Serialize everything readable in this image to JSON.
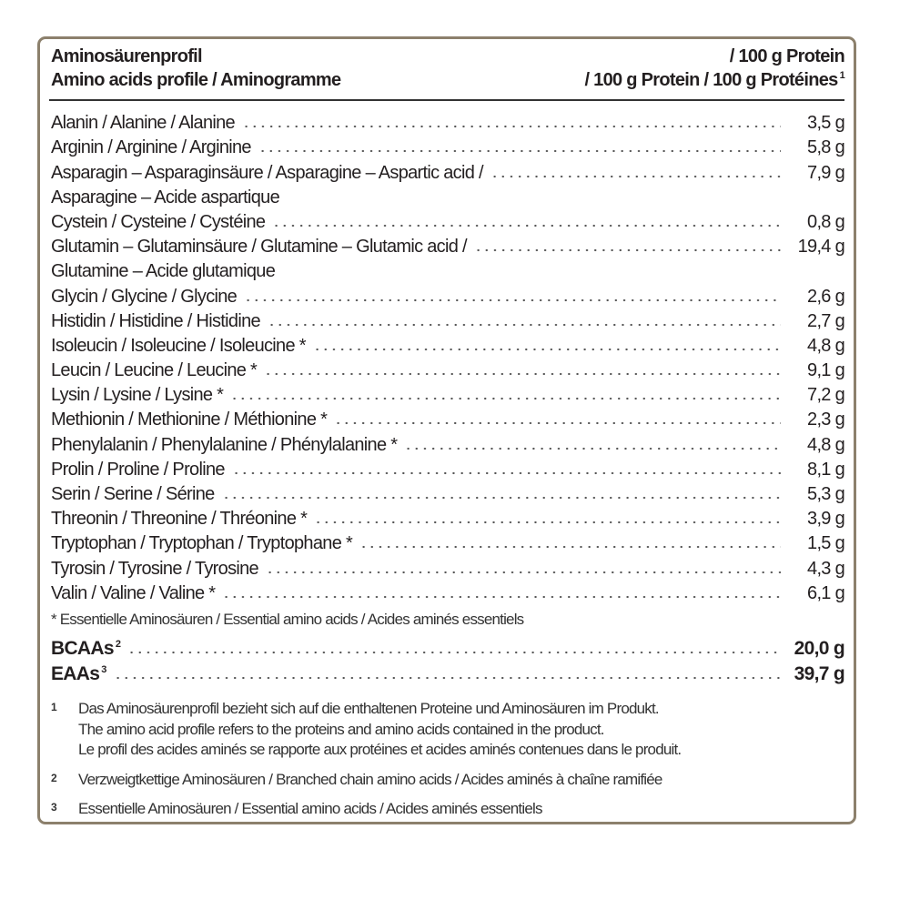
{
  "header": {
    "title_de": "Aminosäurenprofil",
    "title_en_fr": "Amino acids profile / Aminogramme",
    "unit_de": "/ 100 g Protein",
    "unit_en_fr": "/ 100 g Protein / 100 g Protéines",
    "unit_sup": "1"
  },
  "amino_acids": [
    {
      "name": "Alanin / Alanine / Alanine",
      "value": "3,5 g"
    },
    {
      "name": "Arginin / Arginine / Arginine",
      "value": "5,8 g"
    },
    {
      "name": "Asparagin – Asparaginsäure / Asparagine – Aspartic acid /",
      "name2": "Asparagine – Acide aspartique",
      "value": "7,9 g"
    },
    {
      "name": "Cystein / Cysteine / Cystéine",
      "value": "0,8 g"
    },
    {
      "name": "Glutamin – Glutaminsäure / Glutamine – Glutamic acid /",
      "name2": "Glutamine – Acide glutamique",
      "value": "19,4 g"
    },
    {
      "name": "Glycin / Glycine / Glycine",
      "value": "2,6 g"
    },
    {
      "name": "Histidin / Histidine / Histidine",
      "value": "2,7 g"
    },
    {
      "name": "Isoleucin / Isoleucine / Isoleucine *",
      "value": "4,8 g"
    },
    {
      "name": "Leucin / Leucine / Leucine *",
      "value": "9,1 g"
    },
    {
      "name": "Lysin / Lysine / Lysine *",
      "value": "7,2 g"
    },
    {
      "name": "Methionin / Methionine / Méthionine *",
      "value": "2,3 g"
    },
    {
      "name": "Phenylalanin / Phenylalanine / Phénylalanine *",
      "value": "4,8 g"
    },
    {
      "name": "Prolin / Proline / Proline",
      "value": "8,1 g"
    },
    {
      "name": "Serin / Serine / Sérine",
      "value": "5,3 g"
    },
    {
      "name": "Threonin / Threonine / Thréonine *",
      "value": "3,9 g"
    },
    {
      "name": "Tryptophan / Tryptophan / Tryptophane *",
      "value": "1,5 g"
    },
    {
      "name": "Tyrosin / Tyrosine / Tyrosine",
      "value": "4,3 g"
    },
    {
      "name": "Valin / Valine / Valine *",
      "value": "6,1 g"
    }
  ],
  "essential_note": "*  Essentielle Aminosäuren  /  Essential amino acids  /  Acides aminés essentiels",
  "totals": [
    {
      "name": "BCAAs",
      "sup": "2",
      "value": "20,0 g"
    },
    {
      "name": "EAAs",
      "sup": "3",
      "value": "39,7 g"
    }
  ],
  "footnotes": [
    {
      "n": "1",
      "lines": [
        "Das Aminosäurenprofil bezieht sich auf die enthaltenen Proteine und Aminosäuren im Produkt.",
        "The amino acid profile refers to the proteins and amino acids contained in the product.",
        "Le profil des acides aminés se rapporte aux protéines et acides aminés contenues dans le produit."
      ]
    },
    {
      "n": "2",
      "lines": [
        "Verzweigtkettige Aminosäuren  /  Branched chain amino acids  /  Acides aminés à chaîne ramifiée"
      ]
    },
    {
      "n": "3",
      "lines": [
        "Essentielle Aminosäuren  /  Essential amino acids  /  Acides aminés essentiels"
      ]
    }
  ],
  "colors": {
    "border": "#8c806c",
    "text": "#231f20"
  }
}
